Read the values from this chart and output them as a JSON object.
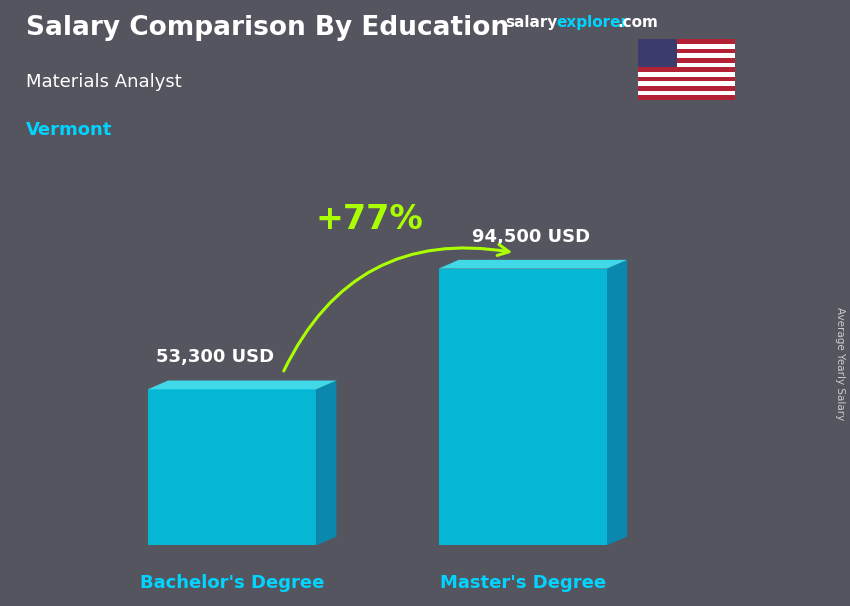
{
  "title1": "Salary Comparison By Education",
  "title1_color": "#ffffff",
  "title2": "Materials Analyst",
  "title2_color": "#ffffff",
  "title3": "Vermont",
  "title3_color": "#00d4ff",
  "categories": [
    "Bachelor's Degree",
    "Master's Degree"
  ],
  "values": [
    53300,
    94500
  ],
  "value_labels": [
    "53,300 USD",
    "94,500 USD"
  ],
  "bar_color_front": "#00c0e0",
  "bar_color_top": "#40e0f0",
  "bar_color_side": "#0090b8",
  "pct_label": "+77%",
  "pct_color": "#aaff00",
  "arrow_color": "#aaff00",
  "xlabel_color": "#00d4ff",
  "value_label_color": "#ffffff",
  "ylabel_text": "Average Yearly Salary",
  "ylabel_color": "#cccccc",
  "bg_color": "#555560",
  "website_salary_color": "#ffffff",
  "website_explorer_color": "#00d4ff",
  "website_com_color": "#ffffff",
  "ylim": [
    0,
    120000
  ],
  "bar_positions": [
    0.27,
    0.65
  ],
  "bar_width": 0.22,
  "figsize": [
    8.5,
    6.06
  ],
  "dpi": 100
}
